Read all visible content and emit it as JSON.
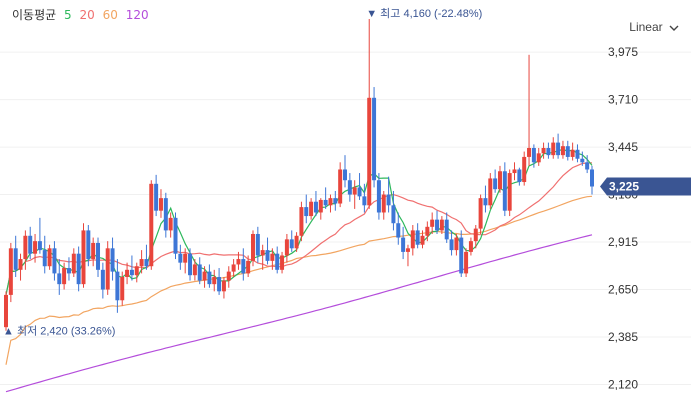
{
  "legend": {
    "title": "이동평균",
    "periods": [
      {
        "label": "5",
        "color": "#2eb85c"
      },
      {
        "label": "20",
        "color": "#f07070"
      },
      {
        "label": "60",
        "color": "#f2a561"
      },
      {
        "label": "120",
        "color": "#b44ddb"
      }
    ]
  },
  "scale_toggle": {
    "label": "Linear",
    "icon": "chevron-down-icon"
  },
  "colors": {
    "up": "#e8453c",
    "down": "#3d76d6",
    "ma5": "#2eb85c",
    "ma20": "#f07070",
    "ma60": "#f2a561",
    "ma120": "#b44ddb",
    "current_bg": "#3a5593"
  },
  "chart_data": {
    "type": "candlestick",
    "y_ticks": [
      "3,975",
      "3,710",
      "3,445",
      "3,180",
      "2,915",
      "2,650",
      "2,385",
      "2,120"
    ],
    "ylim": [
      2000,
      4210
    ],
    "current_price": "3,225",
    "high_annotation": {
      "label": "최고",
      "value": "4,160 (-22.48%)",
      "price": 4160,
      "index": 75
    },
    "low_annotation": {
      "label": "최저",
      "value": "2,420 (33.26%)",
      "price": 2420,
      "index": 0
    },
    "candles": [
      [
        2440,
        2640,
        2420,
        2620
      ],
      [
        2620,
        2910,
        2580,
        2880
      ],
      [
        2880,
        2950,
        2720,
        2760
      ],
      [
        2760,
        2850,
        2700,
        2820
      ],
      [
        2820,
        2980,
        2760,
        2950
      ],
      [
        2950,
        3000,
        2820,
        2850
      ],
      [
        2850,
        2960,
        2800,
        2920
      ],
      [
        2920,
        3050,
        2850,
        2870
      ],
      [
        2870,
        2950,
        2740,
        2780
      ],
      [
        2780,
        2900,
        2760,
        2880
      ],
      [
        2880,
        2920,
        2700,
        2740
      ],
      [
        2740,
        2820,
        2620,
        2680
      ],
      [
        2680,
        2800,
        2650,
        2770
      ],
      [
        2770,
        2830,
        2700,
        2740
      ],
      [
        2740,
        2880,
        2720,
        2850
      ],
      [
        2850,
        2890,
        2640,
        2680
      ],
      [
        2680,
        3020,
        2660,
        2980
      ],
      [
        2980,
        3010,
        2780,
        2820
      ],
      [
        2820,
        2940,
        2780,
        2910
      ],
      [
        2910,
        2940,
        2720,
        2760
      ],
      [
        2760,
        2800,
        2600,
        2650
      ],
      [
        2650,
        2920,
        2620,
        2880
      ],
      [
        2880,
        2940,
        2700,
        2750
      ],
      [
        2750,
        2820,
        2520,
        2590
      ],
      [
        2590,
        2750,
        2560,
        2720
      ],
      [
        2720,
        2800,
        2680,
        2760
      ],
      [
        2760,
        2840,
        2700,
        2730
      ],
      [
        2730,
        2800,
        2690,
        2780
      ],
      [
        2780,
        2870,
        2740,
        2820
      ],
      [
        2820,
        2900,
        2760,
        2780
      ],
      [
        2780,
        3260,
        2760,
        3240
      ],
      [
        3240,
        3290,
        3060,
        3090
      ],
      [
        3090,
        3210,
        3050,
        3160
      ],
      [
        3160,
        3190,
        2940,
        2980
      ],
      [
        2980,
        3080,
        2940,
        3050
      ],
      [
        3050,
        3080,
        2820,
        2850
      ],
      [
        2850,
        2900,
        2760,
        2800
      ],
      [
        2800,
        2880,
        2740,
        2850
      ],
      [
        2850,
        2880,
        2700,
        2730
      ],
      [
        2730,
        2820,
        2700,
        2790
      ],
      [
        2790,
        2830,
        2680,
        2700
      ],
      [
        2700,
        2780,
        2660,
        2750
      ],
      [
        2750,
        2790,
        2660,
        2680
      ],
      [
        2680,
        2760,
        2640,
        2720
      ],
      [
        2720,
        2770,
        2620,
        2640
      ],
      [
        2640,
        2720,
        2600,
        2700
      ],
      [
        2700,
        2780,
        2660,
        2750
      ],
      [
        2750,
        2820,
        2720,
        2790
      ],
      [
        2790,
        2860,
        2760,
        2820
      ],
      [
        2820,
        2880,
        2700,
        2740
      ],
      [
        2740,
        2840,
        2720,
        2810
      ],
      [
        2810,
        2980,
        2780,
        2960
      ],
      [
        2960,
        3000,
        2800,
        2840
      ],
      [
        2840,
        2900,
        2760,
        2870
      ],
      [
        2870,
        2940,
        2790,
        2810
      ],
      [
        2810,
        2880,
        2760,
        2850
      ],
      [
        2850,
        2890,
        2740,
        2760
      ],
      [
        2760,
        2860,
        2740,
        2840
      ],
      [
        2840,
        2960,
        2800,
        2930
      ],
      [
        2930,
        2980,
        2860,
        2880
      ],
      [
        2880,
        2970,
        2860,
        2950
      ],
      [
        2950,
        3140,
        2920,
        3110
      ],
      [
        3110,
        3180,
        3020,
        3060
      ],
      [
        3060,
        3160,
        3040,
        3140
      ],
      [
        3140,
        3200,
        3060,
        3080
      ],
      [
        3080,
        3160,
        3040,
        3150
      ],
      [
        3150,
        3220,
        3100,
        3120
      ],
      [
        3120,
        3180,
        3080,
        3160
      ],
      [
        3160,
        3200,
        3090,
        3130
      ],
      [
        3130,
        3360,
        3110,
        3320
      ],
      [
        3320,
        3400,
        3220,
        3260
      ],
      [
        3260,
        3300,
        3140,
        3180
      ],
      [
        3180,
        3260,
        3100,
        3220
      ],
      [
        3220,
        3300,
        3150,
        3170
      ],
      [
        3170,
        3240,
        3080,
        3120
      ],
      [
        3120,
        4160,
        3100,
        3720
      ],
      [
        3720,
        3780,
        3220,
        3260
      ],
      [
        3260,
        3300,
        3040,
        3080
      ],
      [
        3080,
        3200,
        3040,
        3180
      ],
      [
        3180,
        3280,
        3080,
        3120
      ],
      [
        3120,
        3200,
        2980,
        3020
      ],
      [
        3020,
        3080,
        2900,
        2940
      ],
      [
        2940,
        3000,
        2820,
        2860
      ],
      [
        2860,
        2900,
        2780,
        2880
      ],
      [
        2880,
        3010,
        2840,
        2980
      ],
      [
        2980,
        3020,
        2880,
        2900
      ],
      [
        2900,
        2980,
        2880,
        2950
      ],
      [
        2950,
        3030,
        2920,
        3000
      ],
      [
        3000,
        3080,
        2960,
        3040
      ],
      [
        3040,
        3090,
        2960,
        2980
      ],
      [
        2980,
        3060,
        2960,
        3040
      ],
      [
        3040,
        3080,
        2910,
        2930
      ],
      [
        2930,
        2980,
        2840,
        2870
      ],
      [
        2870,
        2960,
        2840,
        2940
      ],
      [
        2940,
        2980,
        2720,
        2740
      ],
      [
        2740,
        2880,
        2720,
        2860
      ],
      [
        2860,
        2940,
        2840,
        2920
      ],
      [
        2920,
        3010,
        2880,
        2990
      ],
      [
        2990,
        3180,
        2960,
        3160
      ],
      [
        3160,
        3230,
        3080,
        3120
      ],
      [
        3120,
        3300,
        3100,
        3270
      ],
      [
        3270,
        3320,
        3190,
        3210
      ],
      [
        3210,
        3340,
        3190,
        3310
      ],
      [
        3310,
        3360,
        3060,
        3090
      ],
      [
        3090,
        3320,
        3060,
        3300
      ],
      [
        3300,
        3360,
        3260,
        3320
      ],
      [
        3320,
        3330,
        3230,
        3250
      ],
      [
        3250,
        3420,
        3230,
        3390
      ],
      [
        3390,
        3960,
        3340,
        3440
      ],
      [
        3440,
        3460,
        3330,
        3360
      ],
      [
        3360,
        3440,
        3340,
        3410
      ],
      [
        3410,
        3470,
        3380,
        3440
      ],
      [
        3440,
        3470,
        3380,
        3400
      ],
      [
        3400,
        3500,
        3380,
        3470
      ],
      [
        3470,
        3520,
        3380,
        3400
      ],
      [
        3400,
        3480,
        3380,
        3450
      ],
      [
        3450,
        3480,
        3370,
        3390
      ],
      [
        3390,
        3470,
        3370,
        3430
      ],
      [
        3430,
        3460,
        3360,
        3380
      ],
      [
        3380,
        3420,
        3340,
        3360
      ],
      [
        3360,
        3400,
        3300,
        3320
      ],
      [
        3320,
        3340,
        3180,
        3225
      ]
    ]
  }
}
